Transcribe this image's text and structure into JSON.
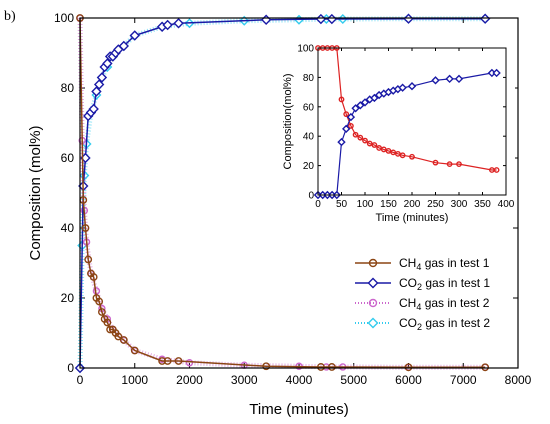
{
  "panel_label": "b)",
  "chart_data": [
    {
      "type": "line",
      "xlabel": "Time (minutes)",
      "ylabel": "Composition (mol%)",
      "xlim": [
        0,
        8000
      ],
      "ylim": [
        0,
        100
      ],
      "xticks": [
        "0",
        "1000",
        "2000",
        "3000",
        "4000",
        "5000",
        "6000",
        "7000",
        "8000"
      ],
      "yticks": [
        "0",
        "20",
        "40",
        "60",
        "80",
        "100"
      ],
      "legend_position": "bottom-right",
      "series": [
        {
          "legend_main": "CH",
          "legend_sub": "4",
          "legend_rest": " gas in test 1",
          "color": "#8b4513",
          "marker": "circle",
          "style": "solid",
          "points": [
            [
              0,
              100
            ],
            [
              60,
              48
            ],
            [
              100,
              40
            ],
            [
              150,
              31
            ],
            [
              200,
              27
            ],
            [
              250,
              26
            ],
            [
              300,
              20
            ],
            [
              350,
              19
            ],
            [
              400,
              16
            ],
            [
              450,
              14
            ],
            [
              500,
              13
            ],
            [
              550,
              11
            ],
            [
              600,
              11
            ],
            [
              650,
              10
            ],
            [
              700,
              9
            ],
            [
              800,
              8
            ],
            [
              1000,
              5
            ],
            [
              1500,
              2
            ],
            [
              1600,
              2
            ],
            [
              1800,
              2
            ],
            [
              3400,
              0.5
            ],
            [
              4400,
              0.3
            ],
            [
              4600,
              0.3
            ],
            [
              6000,
              0.2
            ],
            [
              7400,
              0.2
            ]
          ]
        },
        {
          "legend_main": "CO",
          "legend_sub": "2",
          "legend_rest": " gas in test 1",
          "color": "#1a1aa6",
          "marker": "diamond",
          "style": "solid",
          "points": [
            [
              0,
              0
            ],
            [
              60,
              52
            ],
            [
              100,
              60
            ],
            [
              150,
              72
            ],
            [
              200,
              73
            ],
            [
              250,
              74
            ],
            [
              300,
              79
            ],
            [
              350,
              81
            ],
            [
              400,
              83
            ],
            [
              450,
              86
            ],
            [
              500,
              87
            ],
            [
              550,
              89
            ],
            [
              600,
              89
            ],
            [
              650,
              90
            ],
            [
              700,
              91
            ],
            [
              800,
              92
            ],
            [
              1000,
              95
            ],
            [
              1500,
              97.5
            ],
            [
              1600,
              98
            ],
            [
              1800,
              98.5
            ],
            [
              3400,
              99.5
            ],
            [
              4400,
              99.7
            ],
            [
              4600,
              99.7
            ],
            [
              6000,
              99.8
            ],
            [
              7400,
              99.8
            ]
          ]
        },
        {
          "legend_main": "CH",
          "legend_sub": "4",
          "legend_rest": " gas in test 2",
          "color": "#cc66cc",
          "marker": "circle-open",
          "style": "dotted",
          "points": [
            [
              0,
              100
            ],
            [
              40,
              65
            ],
            [
              80,
              45
            ],
            [
              120,
              36
            ],
            [
              200,
              27
            ],
            [
              300,
              22
            ],
            [
              400,
              17
            ],
            [
              500,
              14
            ],
            [
              600,
              11
            ],
            [
              800,
              8
            ],
            [
              1000,
              5
            ],
            [
              1500,
              2.5
            ],
            [
              2000,
              1.5
            ],
            [
              3000,
              0.8
            ],
            [
              4000,
              0.5
            ],
            [
              4500,
              0.3
            ],
            [
              4800,
              0.3
            ],
            [
              6000,
              0.2
            ],
            [
              7400,
              0.2
            ]
          ]
        },
        {
          "legend_main": "CO",
          "legend_sub": "2",
          "legend_rest": " gas in test 2",
          "color": "#33ccee",
          "marker": "diamond",
          "style": "dotted",
          "points": [
            [
              0,
              0
            ],
            [
              40,
              35
            ],
            [
              80,
              55
            ],
            [
              120,
              64
            ],
            [
              200,
              73
            ],
            [
              300,
              78
            ],
            [
              400,
              83
            ],
            [
              500,
              86
            ],
            [
              600,
              89
            ],
            [
              800,
              92
            ],
            [
              1000,
              95
            ],
            [
              1500,
              97.5
            ],
            [
              2000,
              98.5
            ],
            [
              3000,
              99.2
            ],
            [
              4000,
              99.5
            ],
            [
              4500,
              99.7
            ],
            [
              4800,
              99.7
            ],
            [
              6000,
              99.8
            ],
            [
              7400,
              99.8
            ]
          ]
        }
      ]
    },
    {
      "type": "line",
      "xlabel": "Time (minutes)",
      "ylabel": "Composition(mol%)",
      "xlim": [
        0,
        400
      ],
      "ylim": [
        0,
        100
      ],
      "xticks": [
        "0",
        "50",
        "100",
        "150",
        "200",
        "250",
        "300",
        "350",
        "400"
      ],
      "yticks": [
        "0",
        "20",
        "40",
        "60",
        "80",
        "100"
      ],
      "series": [
        {
          "color": "#dd2222",
          "marker": "circle-open",
          "points": [
            [
              0,
              100
            ],
            [
              10,
              100
            ],
            [
              20,
              100
            ],
            [
              30,
              100
            ],
            [
              40,
              100
            ],
            [
              50,
              65
            ],
            [
              60,
              55
            ],
            [
              70,
              47
            ],
            [
              80,
              41
            ],
            [
              90,
              39
            ],
            [
              100,
              37
            ],
            [
              110,
              35
            ],
            [
              120,
              34
            ],
            [
              130,
              32
            ],
            [
              140,
              31
            ],
            [
              150,
              30
            ],
            [
              160,
              29
            ],
            [
              170,
              28
            ],
            [
              180,
              27
            ],
            [
              200,
              26
            ],
            [
              250,
              22
            ],
            [
              280,
              21
            ],
            [
              300,
              21
            ],
            [
              370,
              17
            ],
            [
              380,
              17
            ]
          ]
        },
        {
          "color": "#1a1aa6",
          "marker": "diamond-open",
          "points": [
            [
              0,
              0
            ],
            [
              10,
              0
            ],
            [
              20,
              0
            ],
            [
              30,
              0
            ],
            [
              40,
              0
            ],
            [
              50,
              36
            ],
            [
              60,
              45
            ],
            [
              70,
              53
            ],
            [
              80,
              59
            ],
            [
              90,
              61
            ],
            [
              100,
              63
            ],
            [
              110,
              65
            ],
            [
              120,
              66
            ],
            [
              130,
              68
            ],
            [
              140,
              69
            ],
            [
              150,
              70
            ],
            [
              160,
              71
            ],
            [
              170,
              72
            ],
            [
              180,
              73
            ],
            [
              200,
              74
            ],
            [
              250,
              78
            ],
            [
              280,
              79
            ],
            [
              300,
              79
            ],
            [
              370,
              83
            ],
            [
              380,
              83
            ]
          ]
        }
      ]
    }
  ]
}
